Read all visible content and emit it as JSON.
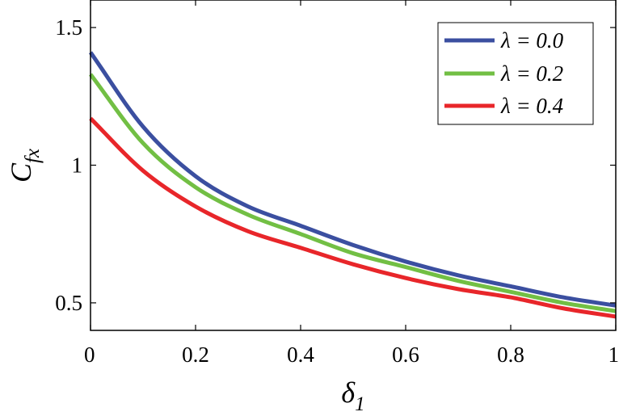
{
  "chart_data": {
    "type": "line",
    "xlabel": "δ",
    "xlabel_sub": "1",
    "ylabel": "C",
    "ylabel_sub": "fx",
    "xlim": [
      0,
      1
    ],
    "ylim": [
      0.4,
      1.6
    ],
    "xticks": [
      0,
      0.2,
      0.4,
      0.6,
      0.8,
      1
    ],
    "xtick_labels": [
      "0",
      "0.2",
      "0.4",
      "0.6",
      "0.8",
      "1"
    ],
    "yticks": [
      0.5,
      1,
      1.5
    ],
    "ytick_labels": [
      "0.5",
      "1",
      "1.5"
    ],
    "grid": false,
    "legend_position": "top-right",
    "x": [
      0,
      0.1,
      0.2,
      0.3,
      0.4,
      0.5,
      0.6,
      0.7,
      0.8,
      0.9,
      1.0
    ],
    "series": [
      {
        "name": "λ = 0.0",
        "color": "#3b4fa0",
        "values": [
          1.41,
          1.14,
          0.96,
          0.85,
          0.78,
          0.71,
          0.65,
          0.6,
          0.56,
          0.52,
          0.49
        ]
      },
      {
        "name": "λ = 0.2",
        "color": "#72bf44",
        "values": [
          1.33,
          1.08,
          0.92,
          0.82,
          0.75,
          0.68,
          0.63,
          0.58,
          0.54,
          0.5,
          0.47
        ]
      },
      {
        "name": "λ = 0.4",
        "color": "#e8262a",
        "values": [
          1.17,
          0.98,
          0.85,
          0.76,
          0.7,
          0.64,
          0.59,
          0.55,
          0.52,
          0.48,
          0.45
        ]
      }
    ]
  }
}
